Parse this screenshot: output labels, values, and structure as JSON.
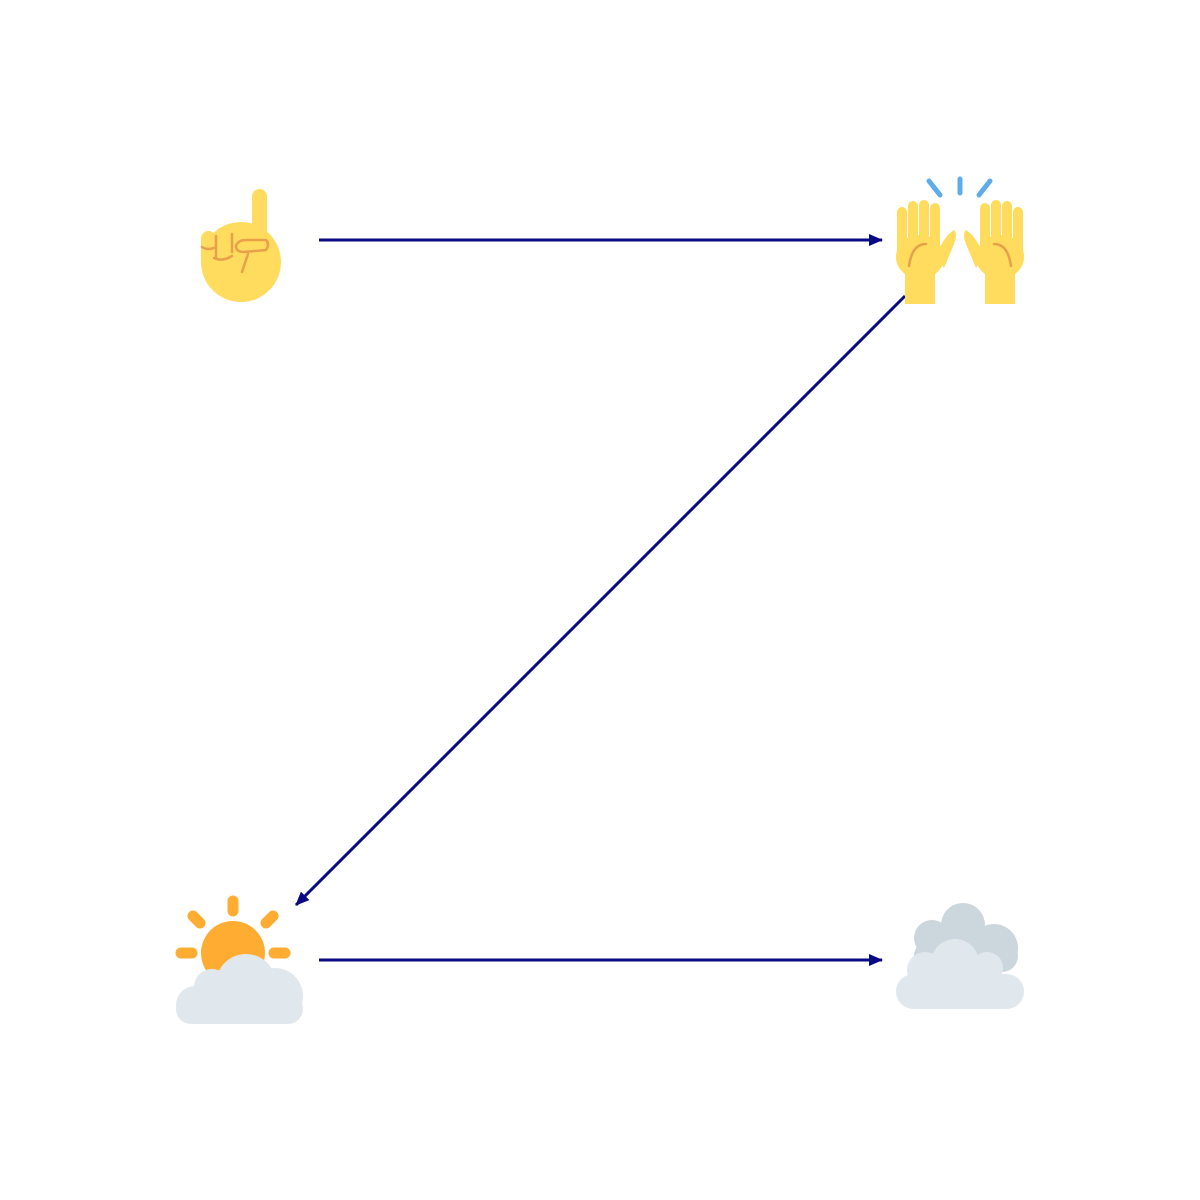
{
  "diagram": {
    "nodes": [
      {
        "id": "index-pointing-up",
        "icon": "index-pointing-up-icon"
      },
      {
        "id": "raising-hands",
        "icon": "raising-hands-icon"
      },
      {
        "id": "sun-behind-cloud",
        "icon": "sun-behind-cloud-icon"
      },
      {
        "id": "cloud",
        "icon": "cloud-icon"
      }
    ],
    "edges": [
      {
        "from": "index-pointing-up",
        "to": "raising-hands"
      },
      {
        "from": "raising-hands",
        "to": "sun-behind-cloud"
      },
      {
        "from": "sun-behind-cloud",
        "to": "cloud"
      }
    ]
  },
  "colors": {
    "arrow": "#0a0a84",
    "skin": "#ffdc5d",
    "skin_line": "#e9a04b",
    "sparkle": "#5dadec",
    "sun": "#ffac33",
    "cloud_front": "#e1e8ed",
    "cloud_back": "#ccd6dd"
  }
}
